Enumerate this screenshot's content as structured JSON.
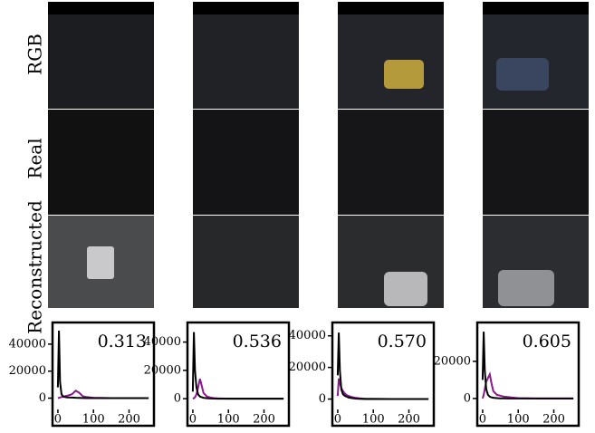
{
  "row_labels": [
    "RGB",
    "Real",
    "Reconstructed"
  ],
  "chart_data": [
    {
      "type": "line",
      "annotation": "0.313",
      "x": [
        0,
        3,
        6,
        10,
        15,
        20,
        25,
        30,
        40,
        50,
        60,
        70,
        80,
        100,
        150,
        200,
        255
      ],
      "series": [
        {
          "color": "#000000",
          "values": [
            8000,
            50000,
            12000,
            3000,
            1000,
            800,
            600,
            500,
            400,
            300,
            200,
            100,
            50,
            0,
            0,
            0,
            0
          ]
        },
        {
          "color": "#8b1a8b",
          "values": [
            0,
            200,
            500,
            800,
            1200,
            1500,
            1800,
            2000,
            3000,
            5500,
            4000,
            1500,
            800,
            300,
            0,
            0,
            0
          ]
        }
      ],
      "xlim": [
        -10,
        270
      ],
      "xticks": [
        0,
        100,
        200
      ],
      "ylim": [
        -3000,
        52000
      ],
      "yticks": [
        0,
        20000,
        40000
      ]
    },
    {
      "type": "line",
      "annotation": "0.536",
      "x": [
        0,
        3,
        6,
        10,
        15,
        20,
        25,
        30,
        40,
        50,
        60,
        70,
        80,
        100,
        150,
        200,
        255
      ],
      "series": [
        {
          "color": "#000000",
          "values": [
            5000,
            47000,
            20000,
            8000,
            3000,
            1500,
            1000,
            600,
            300,
            100,
            50,
            0,
            0,
            0,
            0,
            0,
            0
          ]
        },
        {
          "color": "#8b1a8b",
          "values": [
            0,
            300,
            1000,
            3000,
            8000,
            14000,
            9000,
            4000,
            1500,
            800,
            400,
            200,
            100,
            0,
            0,
            0,
            0
          ]
        }
      ],
      "xlim": [
        -10,
        270
      ],
      "xticks": [
        0,
        100,
        200
      ],
      "ylim": [
        -2500,
        50000
      ],
      "yticks": [
        0,
        20000,
        40000
      ]
    },
    {
      "type": "line",
      "annotation": "0.570",
      "x": [
        0,
        3,
        6,
        10,
        15,
        20,
        25,
        30,
        40,
        50,
        60,
        70,
        80,
        100,
        150,
        200,
        255
      ],
      "series": [
        {
          "color": "#000000",
          "values": [
            15000,
            42000,
            18000,
            6000,
            3000,
            2000,
            1500,
            1000,
            600,
            300,
            100,
            50,
            0,
            0,
            0,
            0,
            0
          ]
        },
        {
          "color": "#8b1a8b",
          "values": [
            2000,
            13000,
            10000,
            7000,
            5000,
            3500,
            2500,
            2000,
            1200,
            800,
            500,
            300,
            200,
            100,
            0,
            0,
            0
          ]
        }
      ],
      "xlim": [
        -10,
        270
      ],
      "xticks": [
        0,
        100,
        200
      ],
      "ylim": [
        -2000,
        45000
      ],
      "yticks": [
        0,
        20000,
        40000
      ]
    },
    {
      "type": "line",
      "annotation": "0.605",
      "x": [
        0,
        3,
        6,
        10,
        15,
        20,
        25,
        30,
        40,
        50,
        60,
        70,
        80,
        100,
        150,
        200,
        255
      ],
      "series": [
        {
          "color": "#000000",
          "values": [
            10000,
            36000,
            15000,
            5000,
            2000,
            1000,
            600,
            400,
            200,
            100,
            50,
            0,
            0,
            0,
            0,
            0,
            0
          ]
        },
        {
          "color": "#8b1a8b",
          "values": [
            0,
            2000,
            5000,
            9000,
            11000,
            13000,
            8000,
            4000,
            2000,
            1500,
            1000,
            800,
            600,
            200,
            0,
            0,
            0
          ]
        }
      ],
      "xlim": [
        -10,
        270
      ],
      "xticks": [
        0,
        100,
        200
      ],
      "ylim": [
        -2000,
        38000
      ],
      "yticks": [
        0,
        20000
      ]
    }
  ]
}
